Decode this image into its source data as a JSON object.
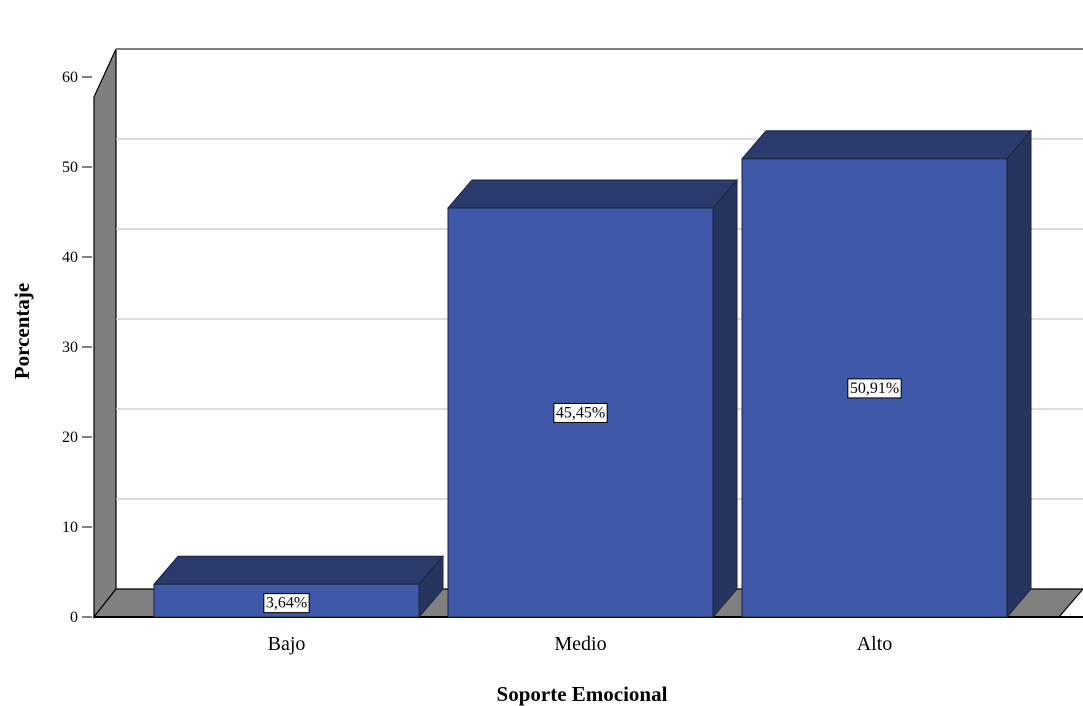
{
  "chart_data": {
    "type": "bar",
    "categories": [
      "Bajo",
      "Medio",
      "Alto"
    ],
    "values": [
      3.64,
      45.45,
      50.91
    ],
    "data_labels": [
      "3,64%",
      "45,45%",
      "50,91%"
    ],
    "xlabel": "Soporte Emocional",
    "ylabel": "Porcentaje",
    "ylim": [
      0,
      60
    ],
    "yticks": [
      0,
      10,
      20,
      30,
      40,
      50,
      60
    ],
    "grid": true,
    "style": "3d",
    "colors": {
      "bar_front": "#3F58A8",
      "bar_top": "#2A3B6C",
      "bar_side": "#25355E",
      "wall": "#7F7F7F",
      "floor": "#808080",
      "gridline": "#C8C8C8"
    }
  }
}
